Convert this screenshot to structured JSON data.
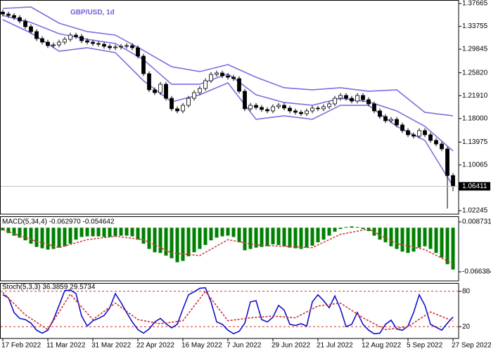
{
  "chart_data": [
    {
      "type": "candlestick",
      "title": "GBP/USD, 1d",
      "title_color": "#6f5fd8",
      "categories": [
        "17 Feb 2022",
        null,
        null,
        null,
        null,
        null,
        null,
        null,
        "11 Mar 2022",
        null,
        null,
        null,
        null,
        null,
        null,
        null,
        "31 Mar 2022",
        null,
        null,
        null,
        null,
        null,
        null,
        null,
        "22 Apr 2022",
        null,
        null,
        null,
        null,
        null,
        null,
        null,
        "16 May 2022",
        null,
        null,
        null,
        null,
        null,
        null,
        null,
        "7 Jun 2022",
        null,
        null,
        null,
        null,
        null,
        null,
        null,
        "29 Jun 2022",
        null,
        null,
        null,
        null,
        null,
        null,
        null,
        "21 Jul 2022",
        null,
        null,
        null,
        null,
        null,
        null,
        null,
        "12 Aug 2022",
        null,
        null,
        null,
        null,
        null,
        null,
        null,
        "5 Sep 2022",
        null,
        null,
        null,
        null,
        null,
        null,
        null,
        "27 Sep 2022"
      ],
      "ohlc": [
        [
          1.362,
          1.366,
          1.3546,
          1.3586
        ],
        [
          1.3586,
          1.3626,
          1.3522,
          1.3562
        ],
        [
          1.3562,
          1.3602,
          1.3486,
          1.3526
        ],
        [
          1.3526,
          1.3566,
          1.3426,
          1.3466
        ],
        [
          1.3466,
          1.3506,
          1.333,
          1.337
        ],
        [
          1.337,
          1.341,
          1.3246,
          1.3286
        ],
        [
          1.3286,
          1.3326,
          1.3126,
          1.3166
        ],
        [
          1.3166,
          1.3206,
          1.3066,
          1.3106
        ],
        [
          1.3106,
          1.3146,
          1.3006,
          1.3046
        ],
        [
          1.3046,
          1.3098,
          1.3006,
          1.3058
        ],
        [
          1.3058,
          1.3146,
          1.3018,
          1.3106
        ],
        [
          1.3106,
          1.3194,
          1.3066,
          1.3154
        ],
        [
          1.3154,
          1.3266,
          1.3114,
          1.3226
        ],
        [
          1.3226,
          1.3266,
          1.3162,
          1.3202
        ],
        [
          1.3202,
          1.3242,
          1.309,
          1.313
        ],
        [
          1.313,
          1.317,
          1.3066,
          1.3106
        ],
        [
          1.3106,
          1.3146,
          1.3042,
          1.3082
        ],
        [
          1.3082,
          1.3122,
          1.303,
          1.307
        ],
        [
          1.307,
          1.311,
          1.2994,
          1.3034
        ],
        [
          1.3034,
          1.3074,
          1.297,
          1.301
        ],
        [
          1.301,
          1.3062,
          1.297,
          1.3022
        ],
        [
          1.3022,
          1.3074,
          1.2982,
          1.3034
        ],
        [
          1.3034,
          1.3086,
          1.2994,
          1.3046
        ],
        [
          1.3046,
          1.3086,
          1.297,
          1.301
        ],
        [
          1.301,
          1.305,
          1.2826,
          1.2866
        ],
        [
          1.2866,
          1.2906,
          1.2526,
          1.2566
        ],
        [
          1.2566,
          1.2606,
          1.225,
          1.229
        ],
        [
          1.229,
          1.233,
          1.2202,
          1.2242
        ],
        [
          1.2242,
          1.2426,
          1.2202,
          1.2386
        ],
        [
          1.2386,
          1.2426,
          1.2106,
          1.2146
        ],
        [
          1.2146,
          1.2186,
          1.1926,
          1.1966
        ],
        [
          1.1966,
          1.2006,
          1.189,
          1.193
        ],
        [
          1.193,
          1.2066,
          1.189,
          1.2026
        ],
        [
          1.2026,
          1.2186,
          1.1986,
          1.2146
        ],
        [
          1.2146,
          1.2282,
          1.2106,
          1.2242
        ],
        [
          1.2242,
          1.2354,
          1.2202,
          1.2314
        ],
        [
          1.2314,
          1.2486,
          1.2274,
          1.2446
        ],
        [
          1.2446,
          1.2594,
          1.2406,
          1.2554
        ],
        [
          1.2554,
          1.2618,
          1.2514,
          1.2578
        ],
        [
          1.2578,
          1.2618,
          1.249,
          1.253
        ],
        [
          1.253,
          1.257,
          1.2466,
          1.2506
        ],
        [
          1.2506,
          1.2546,
          1.2442,
          1.2482
        ],
        [
          1.2482,
          1.2522,
          1.2226,
          1.2266
        ],
        [
          1.2266,
          1.2306,
          1.1926,
          1.1966
        ],
        [
          1.1966,
          1.2066,
          1.1926,
          1.2026
        ],
        [
          1.2026,
          1.2066,
          1.195,
          1.199
        ],
        [
          1.199,
          1.203,
          1.1914,
          1.1954
        ],
        [
          1.1954,
          1.1994,
          1.189,
          1.193
        ],
        [
          1.193,
          1.2042,
          1.189,
          1.2002
        ],
        [
          1.2002,
          1.2066,
          1.1962,
          1.2026
        ],
        [
          1.2026,
          1.2066,
          1.1938,
          1.1978
        ],
        [
          1.1978,
          1.2018,
          1.189,
          1.193
        ],
        [
          1.193,
          1.197,
          1.1866,
          1.1906
        ],
        [
          1.1906,
          1.1946,
          1.1842,
          1.1882
        ],
        [
          1.1882,
          1.197,
          1.1842,
          1.193
        ],
        [
          1.193,
          1.2018,
          1.189,
          1.1978
        ],
        [
          1.1978,
          1.2018,
          1.1926,
          1.1966
        ],
        [
          1.1966,
          1.2042,
          1.1926,
          1.2002
        ],
        [
          1.2002,
          1.209,
          1.1962,
          1.205
        ],
        [
          1.205,
          1.2186,
          1.201,
          1.2146
        ],
        [
          1.2146,
          1.2234,
          1.2106,
          1.2194
        ],
        [
          1.2194,
          1.2234,
          1.2106,
          1.2146
        ],
        [
          1.2146,
          1.2186,
          1.2058,
          1.2098
        ],
        [
          1.2098,
          1.2234,
          1.2058,
          1.2194
        ],
        [
          1.2194,
          1.2234,
          1.2082,
          1.2122
        ],
        [
          1.2122,
          1.2162,
          1.201,
          1.205
        ],
        [
          1.205,
          1.209,
          1.189,
          1.193
        ],
        [
          1.193,
          1.197,
          1.1794,
          1.1834
        ],
        [
          1.1834,
          1.1874,
          1.1722,
          1.1762
        ],
        [
          1.1762,
          1.1826,
          1.1722,
          1.1786
        ],
        [
          1.1786,
          1.1826,
          1.165,
          1.169
        ],
        [
          1.169,
          1.173,
          1.1554,
          1.1594
        ],
        [
          1.1594,
          1.1634,
          1.1482,
          1.1522
        ],
        [
          1.1522,
          1.1562,
          1.1458,
          1.1498
        ],
        [
          1.1498,
          1.1634,
          1.1458,
          1.1594
        ],
        [
          1.1594,
          1.1634,
          1.1482,
          1.1522
        ],
        [
          1.1522,
          1.1562,
          1.1386,
          1.1426
        ],
        [
          1.1426,
          1.1466,
          1.1325,
          1.1365
        ],
        [
          1.1365,
          1.1405,
          1.1241,
          1.1281
        ],
        [
          1.1281,
          1.1321,
          1.0261,
          1.0825
        ],
        [
          1.0825,
          1.0865,
          1.056,
          1.0641
        ]
      ],
      "up_color": "#ffffff",
      "down_color": "#000000",
      "bands": [
        {
          "color": "#7c6fe0",
          "x": [
            0,
            5,
            10,
            15,
            20,
            25,
            30,
            35,
            40,
            45,
            50,
            55,
            60,
            65,
            70,
            75,
            80
          ],
          "values": [
            1.3682,
            1.3706,
            1.343,
            1.3286,
            1.3226,
            1.2962,
            1.2686,
            1.2602,
            1.2722,
            1.2506,
            1.2326,
            1.229,
            1.2326,
            1.2266,
            1.229,
            1.1906,
            1.1846
          ]
        },
        {
          "color": "#7c6fe0",
          "x": [
            0,
            5,
            10,
            15,
            20,
            25,
            30,
            35,
            40,
            45,
            50,
            55,
            60,
            65,
            70,
            75,
            80
          ],
          "values": [
            1.3562,
            1.3442,
            1.325,
            1.3154,
            1.3082,
            1.2806,
            1.2386,
            1.2386,
            1.2566,
            1.2206,
            1.2074,
            1.2026,
            1.2146,
            1.2086,
            1.193,
            1.1666,
            1.1246
          ]
        },
        {
          "color": "#7c6fe0",
          "x": [
            0,
            5,
            10,
            15,
            20,
            25,
            30,
            35,
            40,
            45,
            50,
            55,
            60,
            65,
            70,
            75,
            80
          ],
          "values": [
            1.349,
            1.3262,
            1.295,
            1.301,
            1.2926,
            1.2446,
            1.2086,
            1.2206,
            1.241,
            1.1786,
            1.1846,
            1.1786,
            1.2026,
            1.2026,
            1.1666,
            1.1426,
            1.0645
          ]
        }
      ],
      "ylim": [
        1.0165,
        1.3826
      ],
      "yticks": [
        1.37665,
        1.33755,
        1.29845,
        {
          "value": 1.2582,
          "label": "1.25820"
        },
        {
          "value": 1.2191,
          "label": "1.21910"
        },
        {
          "value": 1.18,
          "label": "1.18000"
        },
        1.13975,
        1.10065,
        1.02245
      ],
      "last_price": 1.06411
    },
    {
      "type": "bar",
      "title": "MACD(5,34,4) -0.062970 -0.054642",
      "color": "#008000",
      "values": [
        -0.004,
        -0.008,
        -0.012,
        -0.015,
        -0.019,
        -0.024,
        -0.029,
        -0.031,
        -0.033,
        -0.032,
        -0.03,
        -0.028,
        -0.024,
        -0.018,
        -0.014,
        -0.013,
        -0.013,
        -0.013,
        -0.014,
        -0.014,
        -0.013,
        -0.012,
        -0.012,
        -0.013,
        -0.018,
        -0.024,
        -0.032,
        -0.037,
        -0.038,
        -0.042,
        -0.046,
        -0.052,
        -0.05,
        -0.043,
        -0.037,
        -0.032,
        -0.026,
        -0.019,
        -0.015,
        -0.013,
        -0.012,
        -0.014,
        -0.022,
        -0.034,
        -0.032,
        -0.03,
        -0.029,
        -0.028,
        -0.025,
        -0.026,
        -0.028,
        -0.03,
        -0.031,
        -0.032,
        -0.03,
        -0.027,
        -0.022,
        -0.018,
        -0.012,
        -0.006,
        -0.002,
        0.001,
        0.002,
        0.001,
        -0.002,
        -0.005,
        -0.012,
        -0.018,
        -0.022,
        -0.028,
        -0.032,
        -0.036,
        -0.038,
        -0.036,
        -0.03,
        -0.028,
        -0.032,
        -0.038,
        -0.045,
        -0.055,
        -0.06297
      ],
      "signal": {
        "color": "#d04040",
        "x": [
          0,
          5,
          10,
          15,
          20,
          25,
          30,
          35,
          40,
          45,
          50,
          55,
          60,
          65,
          70,
          75,
          80
        ],
        "values": [
          -0.003,
          -0.018,
          -0.03,
          -0.018,
          -0.013,
          -0.018,
          -0.038,
          -0.042,
          -0.018,
          -0.026,
          -0.028,
          -0.03,
          -0.01,
          -0.002,
          -0.024,
          -0.033,
          -0.054642
        ]
      },
      "ylim": [
        -0.0801,
        0.0172
      ],
      "yticks": [
        0.008731,
        -0.066384
      ]
    },
    {
      "type": "line",
      "title": "Stoch(5,3,3) 36.3859 29.5734",
      "level_color": "#d03030",
      "series": [
        {
          "color": "#1010c8",
          "values": [
            74,
            69,
            44,
            34,
            32,
            26,
            14,
            9,
            14,
            32,
            56,
            81,
            82,
            76,
            38,
            21,
            30,
            34,
            39,
            52,
            76,
            61,
            44,
            28,
            15,
            9,
            16,
            28,
            34,
            25,
            18,
            24,
            50,
            74,
            79,
            85,
            86,
            62,
            28,
            24,
            14,
            8,
            12,
            26,
            62,
            64,
            32,
            28,
            36,
            56,
            48,
            24,
            22,
            25,
            21,
            62,
            74,
            64,
            52,
            72,
            50,
            20,
            24,
            44,
            24,
            14,
            8,
            9,
            24,
            31,
            16,
            14,
            21,
            44,
            74,
            56,
            24,
            19,
            14,
            26,
            36.3859
          ]
        },
        {
          "color": "#d03030",
          "dashed": true,
          "x": [
            0,
            4,
            8,
            12,
            16,
            20,
            24,
            28,
            32,
            36,
            40,
            44,
            48,
            52,
            56,
            60,
            64,
            68,
            72,
            76,
            80
          ],
          "values": [
            78,
            40,
            15,
            75,
            32,
            60,
            32,
            25,
            30,
            80,
            30,
            35,
            38,
            35,
            55,
            60,
            35,
            15,
            20,
            45,
            29.5734
          ]
        }
      ],
      "ylim": [
        0,
        94
      ],
      "yticks": [
        80,
        20
      ]
    }
  ]
}
